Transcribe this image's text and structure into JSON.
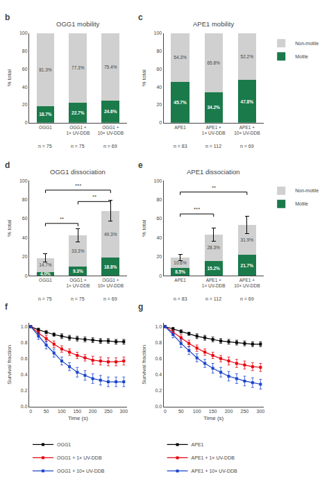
{
  "chart_data": [
    {
      "type": "bar",
      "stacked": true,
      "panel_label": "b",
      "title": "OGG1 mobility",
      "categories": [
        "OGG1",
        "OGG1 +\n1× UV-DDB",
        "OGG1 +\n10× UV-DDB"
      ],
      "n_labels": [
        "n = 75",
        "n = 75",
        "n = 69"
      ],
      "ylabel": "% total",
      "ylim": [
        0,
        100
      ],
      "yticks": [
        0,
        20,
        40,
        60,
        80,
        100
      ],
      "grid": false,
      "legend": false,
      "data_labels": true,
      "series": [
        {
          "name": "Motile",
          "color": "#1a7a4a",
          "values": [
            18.7,
            22.7,
            24.6
          ],
          "value_labels": [
            "18.7%",
            "22.7%",
            "24.6%"
          ]
        },
        {
          "name": "Non-motile",
          "color": "#d0d0d0",
          "values": [
            81.3,
            77.3,
            75.4
          ],
          "value_labels": [
            "81.3%",
            "77.3%",
            "75.4%"
          ]
        }
      ]
    },
    {
      "type": "bar",
      "stacked": true,
      "panel_label": "c",
      "title": "APE1 mobility",
      "categories": [
        "APE1",
        "APE1 +\n1× UV-DDB",
        "APE1 +\n10× UV-DDB"
      ],
      "n_labels": [
        "n = 83",
        "n = 112",
        "n = 69"
      ],
      "ylabel": "% total",
      "ylim": [
        0,
        100
      ],
      "yticks": [
        0,
        20,
        40,
        60,
        80,
        100
      ],
      "grid": false,
      "legend": "right",
      "data_labels": true,
      "series": [
        {
          "name": "Motile",
          "color": "#1a7a4a",
          "values": [
            45.7,
            34.2,
            47.8
          ],
          "value_labels": [
            "45.7%",
            "34.2%",
            "47.8%"
          ]
        },
        {
          "name": "Non-motile",
          "color": "#d0d0d0",
          "values": [
            54.3,
            65.8,
            52.2
          ],
          "value_labels": [
            "54.3%",
            "65.8%",
            "52.2%"
          ]
        }
      ]
    },
    {
      "type": "bar",
      "stacked": true,
      "panel_label": "d",
      "title": "OGG1 dissociation",
      "categories": [
        "OGG1",
        "OGG1 +\n1× UV-DDB",
        "OGG1 +\n10× UV-DDB"
      ],
      "n_labels": [
        "n = 75",
        "n = 75",
        "n = 69"
      ],
      "ylabel": "% total",
      "ylim": [
        0,
        100
      ],
      "yticks": [
        0,
        20,
        40,
        60,
        80,
        100
      ],
      "grid": false,
      "legend": false,
      "data_labels": true,
      "series": [
        {
          "name": "Motile",
          "color": "#1a7a4a",
          "values": [
            4.0,
            9.3,
            18.8
          ],
          "value_labels": [
            "4.0%",
            "9.3%",
            "18.8%"
          ]
        },
        {
          "name": "Non-motile",
          "color": "#d0d0d0",
          "values": [
            14.7,
            33.3,
            49.3
          ],
          "value_labels": [
            "14.7%",
            "33.3%",
            "49.3%"
          ]
        }
      ],
      "total_errors": [
        4.5,
        7.0,
        11.0
      ],
      "brackets": [
        {
          "from": "OGG1",
          "to": "OGG1 +\n1× UV-DDB",
          "y": 55,
          "label": "**"
        },
        {
          "from": "OGG1",
          "to": "OGG1 +\n10× UV-DDB",
          "y": 90,
          "label": "***"
        },
        {
          "from": "OGG1 +\n1× UV-DDB",
          "to": "OGG1 +\n10× UV-DDB",
          "y": 78,
          "label": "**"
        }
      ]
    },
    {
      "type": "bar",
      "stacked": true,
      "panel_label": "e",
      "title": "APE1 dissociation",
      "categories": [
        "APE1",
        "APE1 +\n1× UV-DDB",
        "APE1 +\n10× UV-DDB"
      ],
      "n_labels": [
        "n = 83",
        "n = 112",
        "n = 69"
      ],
      "ylabel": "% total",
      "ylim": [
        0,
        100
      ],
      "yticks": [
        0,
        20,
        40,
        60,
        80,
        100
      ],
      "grid": false,
      "legend": "right",
      "data_labels": true,
      "series": [
        {
          "name": "Motile",
          "color": "#1a7a4a",
          "values": [
            8.5,
            15.2,
            21.7
          ],
          "value_labels": [
            "8.5%",
            "15.2%",
            "21.7%"
          ]
        },
        {
          "name": "Non-motile",
          "color": "#d0d0d0",
          "values": [
            10.6,
            28.3,
            31.9
          ],
          "value_labels": [
            "10.6%",
            "28.3%",
            "31.9%"
          ]
        }
      ],
      "total_errors": [
        3.5,
        7.0,
        9.0
      ],
      "brackets": [
        {
          "from": "APE1",
          "to": "APE1 +\n1× UV-DDB",
          "y": 65,
          "label": "***"
        },
        {
          "from": "APE1",
          "to": "APE1 +\n10× UV-DDB",
          "y": 88,
          "label": "**"
        }
      ]
    },
    {
      "type": "line",
      "panel_label": "f",
      "xlabel": "Time (s)",
      "ylabel": "Survival fraction",
      "xlim": [
        -5,
        310
      ],
      "xticks": [
        0,
        50,
        100,
        150,
        200,
        250,
        300
      ],
      "ylim": [
        0.0,
        1.05
      ],
      "yticks": [
        {
          "value": 0,
          "label": "0.0"
        },
        0.2,
        0.4,
        0.6,
        0.8,
        {
          "value": 1,
          "label": "1.0"
        }
      ],
      "grid": false,
      "legend": "bottom",
      "marker": "square",
      "x": [
        0,
        25,
        50,
        75,
        100,
        125,
        150,
        175,
        200,
        225,
        250,
        275,
        300
      ],
      "series": [
        {
          "name": "OGG1",
          "color": "black",
          "values": [
            1.0,
            0.96,
            0.93,
            0.9,
            0.88,
            0.86,
            0.85,
            0.84,
            0.83,
            0.82,
            0.82,
            0.81,
            0.81
          ],
          "errors": [
            0.0,
            0.02,
            0.02,
            0.02,
            0.03,
            0.03,
            0.03,
            0.03,
            0.03,
            0.03,
            0.03,
            0.03,
            0.03
          ]
        },
        {
          "name": "OGG1 + 1× UV-DDB",
          "color": "#e8000d",
          "values": [
            1.0,
            0.92,
            0.85,
            0.78,
            0.72,
            0.68,
            0.64,
            0.61,
            0.58,
            0.57,
            0.56,
            0.56,
            0.57
          ],
          "errors": [
            0.0,
            0.03,
            0.04,
            0.04,
            0.04,
            0.04,
            0.04,
            0.04,
            0.05,
            0.05,
            0.05,
            0.05,
            0.05
          ]
        },
        {
          "name": "OGG1 + 10× UV-DDB",
          "color": "#1a44cc",
          "values": [
            1.0,
            0.88,
            0.77,
            0.67,
            0.57,
            0.5,
            0.43,
            0.39,
            0.35,
            0.33,
            0.31,
            0.31,
            0.31
          ],
          "errors": [
            0.0,
            0.04,
            0.05,
            0.05,
            0.05,
            0.05,
            0.06,
            0.06,
            0.06,
            0.06,
            0.06,
            0.06,
            0.06
          ]
        }
      ]
    },
    {
      "type": "line",
      "panel_label": "g",
      "xlabel": "Time (s)",
      "ylabel": "Survival fraction",
      "xlim": [
        -5,
        310
      ],
      "xticks": [
        0,
        50,
        100,
        150,
        200,
        250,
        300
      ],
      "ylim": [
        0.0,
        1.05
      ],
      "yticks": [
        {
          "value": 0,
          "label": "0.0"
        },
        0.2,
        0.4,
        0.6,
        0.8,
        {
          "value": 1,
          "label": "1.0"
        }
      ],
      "grid": false,
      "legend": "bottom",
      "marker": "square",
      "x": [
        0,
        25,
        50,
        75,
        100,
        125,
        150,
        175,
        200,
        225,
        250,
        275,
        300
      ],
      "series": [
        {
          "name": "APE1",
          "color": "black",
          "values": [
            1.0,
            0.97,
            0.94,
            0.91,
            0.88,
            0.86,
            0.84,
            0.82,
            0.81,
            0.8,
            0.79,
            0.78,
            0.78
          ],
          "errors": [
            0.0,
            0.02,
            0.02,
            0.02,
            0.03,
            0.03,
            0.03,
            0.03,
            0.03,
            0.03,
            0.03,
            0.03,
            0.03
          ]
        },
        {
          "name": "APE1 + 1× UV-DDB",
          "color": "#e8000d",
          "values": [
            1.0,
            0.93,
            0.86,
            0.79,
            0.73,
            0.68,
            0.64,
            0.6,
            0.57,
            0.54,
            0.52,
            0.5,
            0.49
          ],
          "errors": [
            0.0,
            0.03,
            0.04,
            0.04,
            0.04,
            0.04,
            0.04,
            0.04,
            0.05,
            0.05,
            0.05,
            0.05,
            0.05
          ]
        },
        {
          "name": "APE1 + 10× UV-DDB",
          "color": "#1a44cc",
          "values": [
            1.0,
            0.9,
            0.79,
            0.7,
            0.61,
            0.54,
            0.48,
            0.43,
            0.38,
            0.35,
            0.32,
            0.3,
            0.28
          ],
          "errors": [
            0.0,
            0.04,
            0.05,
            0.05,
            0.05,
            0.05,
            0.06,
            0.06,
            0.06,
            0.06,
            0.06,
            0.06,
            0.06
          ]
        }
      ]
    }
  ]
}
